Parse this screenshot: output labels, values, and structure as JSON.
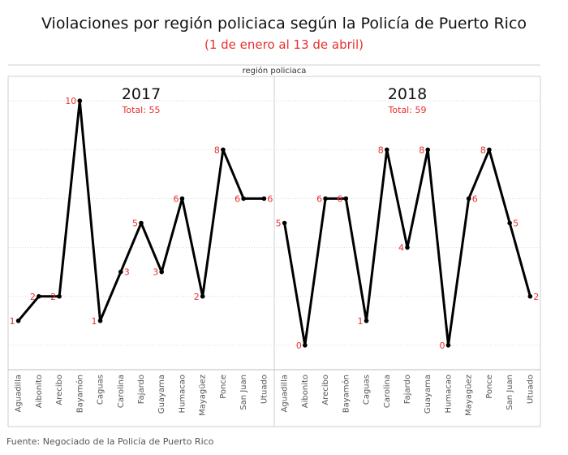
{
  "title": "Violaciones por región policiaca según la Policía de Puerto Rico",
  "subtitle": "(1 de enero al 13 de abril)",
  "source": "Fuente: Negociado de la Policía de Puerto Rico",
  "colors": {
    "line": "#000000",
    "label": "#e8302f",
    "grid": "#d9d9d9"
  },
  "chart_data": {
    "type": "line",
    "header": "región policiaca",
    "categories": [
      "Aguadilla",
      "Aibonito",
      "Arecibo",
      "Bayamón",
      "Caguas",
      "Carolina",
      "Fajardo",
      "Guayama",
      "Humacao",
      "Mayagüez",
      "Ponce",
      "San Juan",
      "Utuado"
    ],
    "ylim": [
      -1,
      11
    ],
    "grid": true,
    "panels": [
      {
        "year": "2017",
        "total": "Total: 55",
        "values": [
          1,
          2,
          2,
          10,
          1,
          3,
          5,
          3,
          6,
          2,
          8,
          6,
          6
        ]
      },
      {
        "year": "2018",
        "total": "Total: 59",
        "values": [
          5,
          0,
          6,
          6,
          1,
          8,
          4,
          8,
          0,
          6,
          8,
          5,
          2
        ]
      }
    ]
  }
}
